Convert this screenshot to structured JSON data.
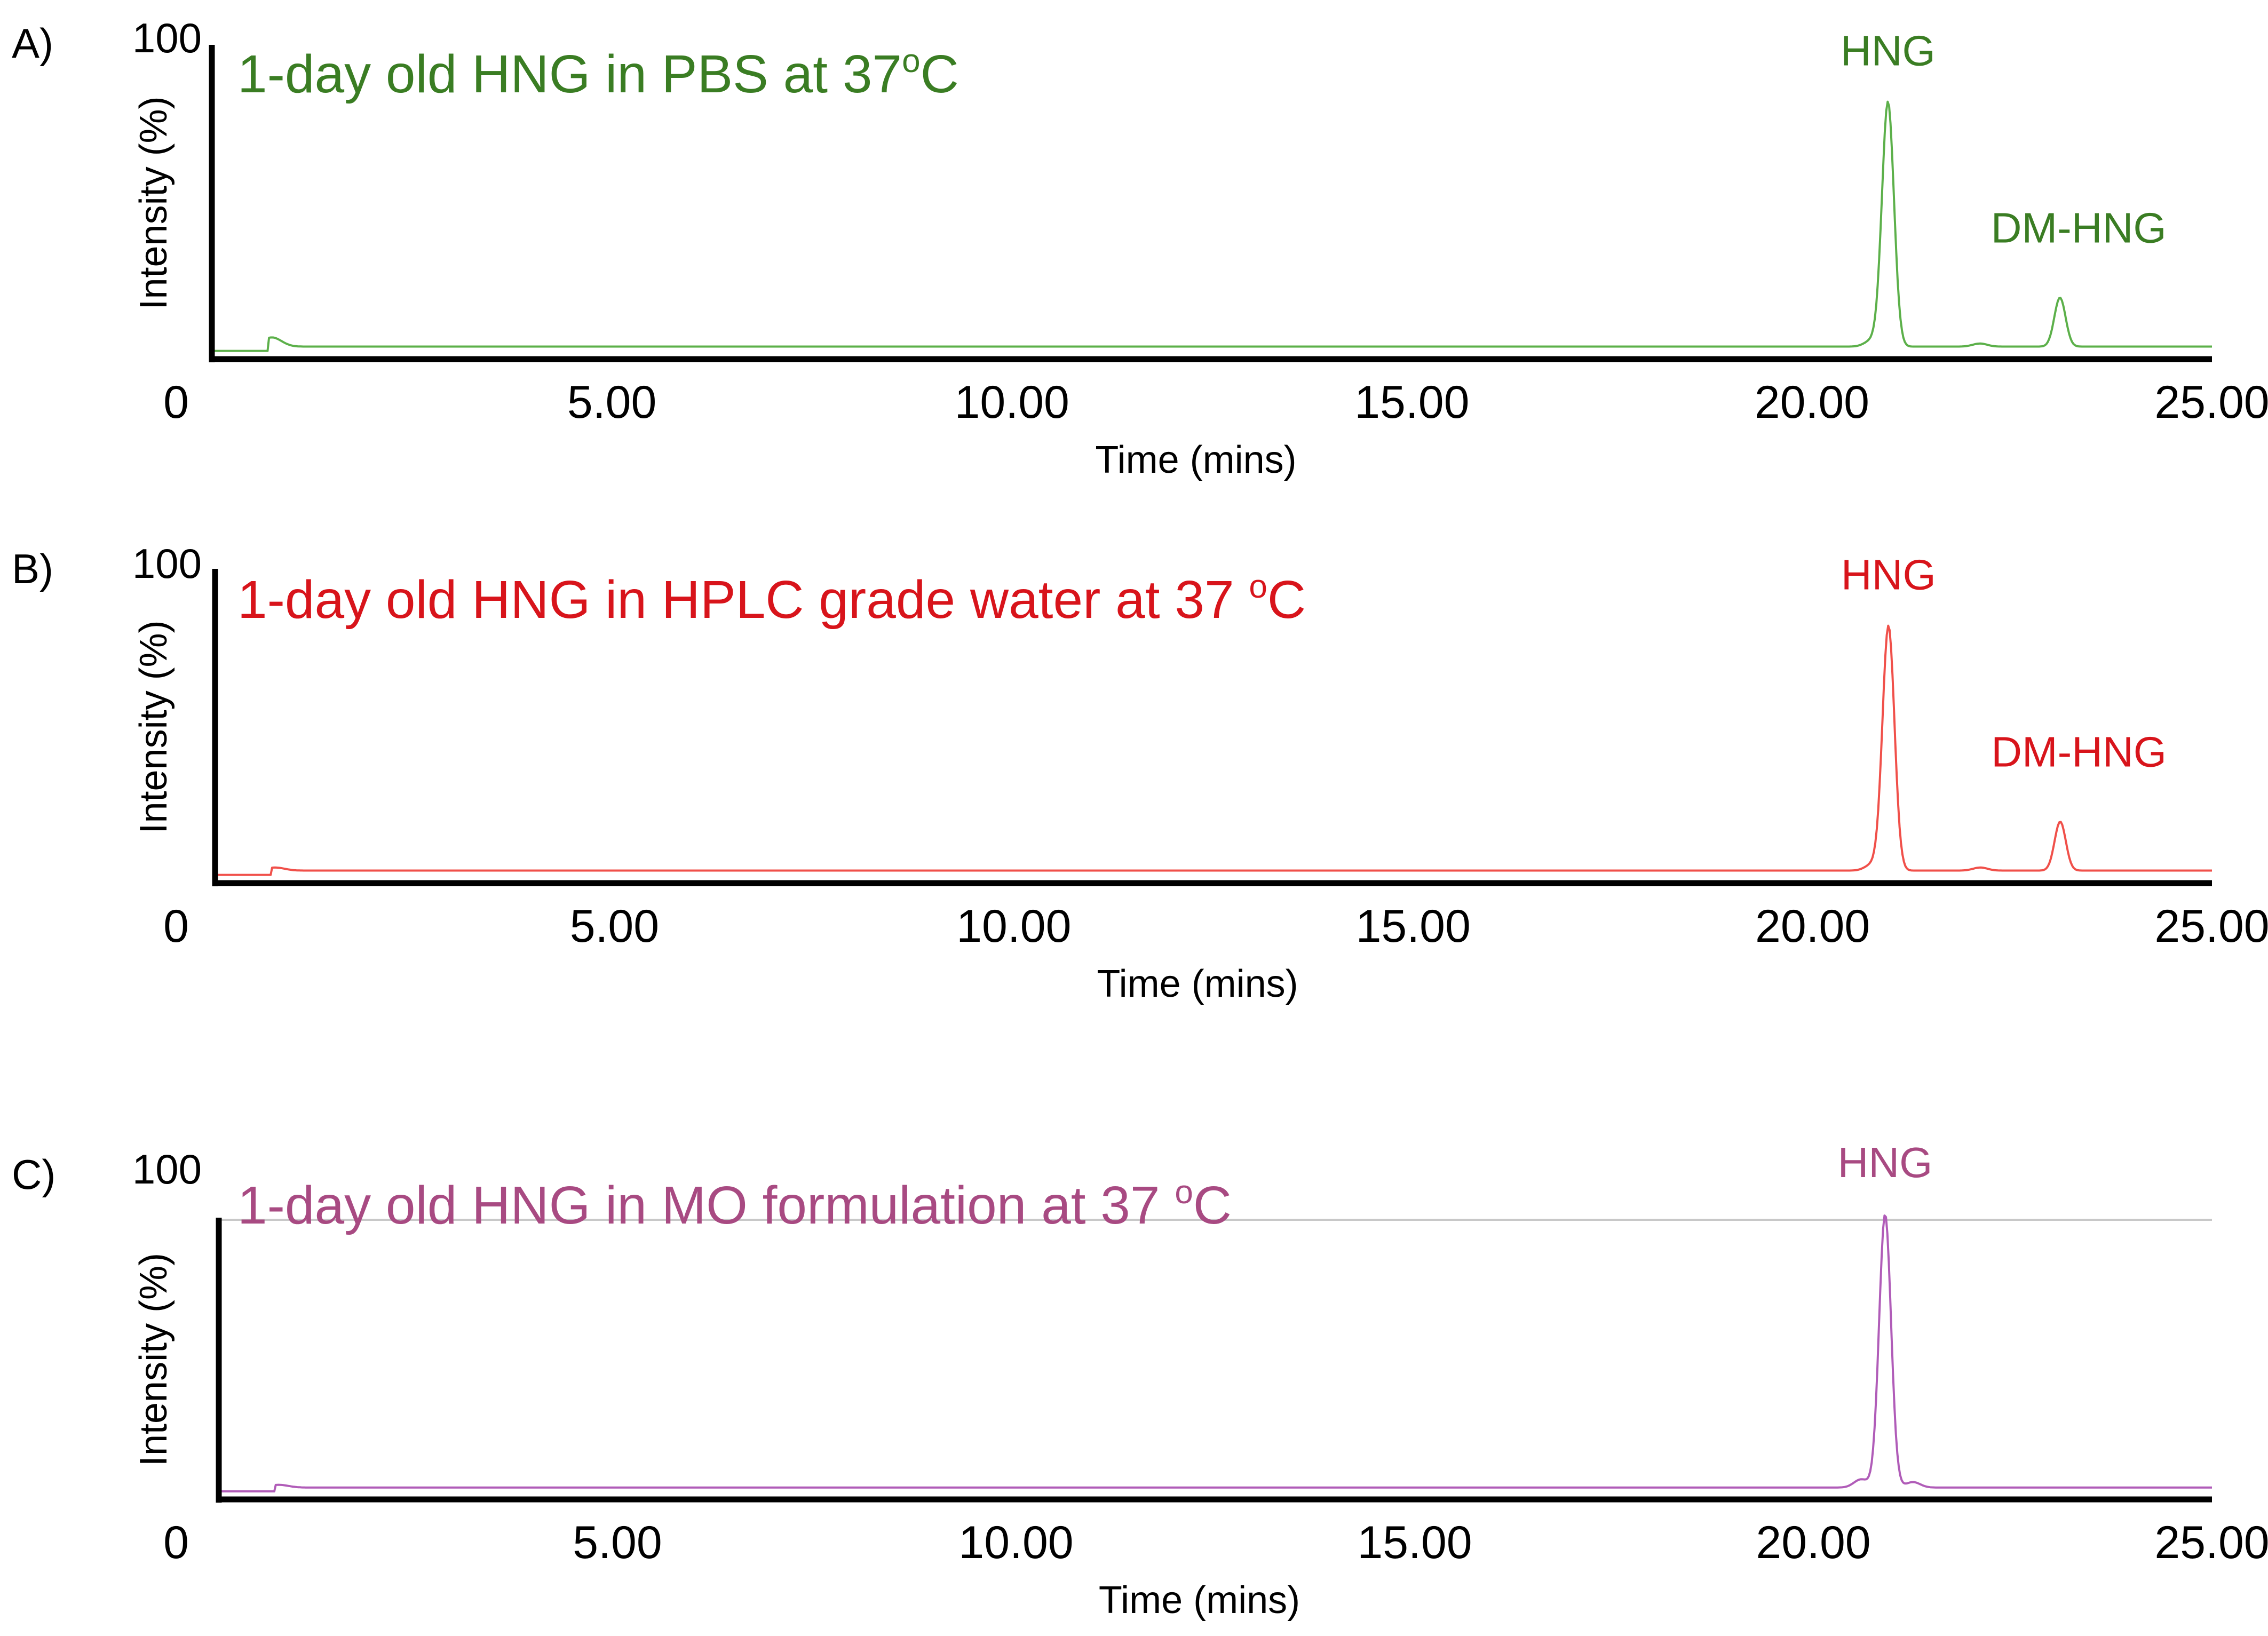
{
  "chart_data": [
    {
      "type": "line",
      "panel_label": "A)",
      "title": "1-day old HNG in PBS at 37",
      "title_superscript": "o",
      "title_suffix": "C",
      "color": "#3a7d23",
      "line_color": "#5cb04a",
      "xlabel": "Time (mins)",
      "ylabel": "Intensity (%)",
      "y_top_label": "100",
      "x_origin_label": "0",
      "xlim": [
        0,
        25
      ],
      "ylim": [
        0,
        100
      ],
      "x_ticks": [
        "5.00",
        "10.00",
        "15.00",
        "20.00",
        "25.00"
      ],
      "baseline": 2,
      "reference_line": false,
      "peaks": [
        {
          "label": "HNG",
          "x": 20.95,
          "height": 80
        },
        {
          "label": "DM-HNG",
          "x": 23.1,
          "height": 16
        }
      ],
      "minor_peaks": [
        {
          "x": 0.75,
          "height": 3
        },
        {
          "x": 20.75,
          "height": 2
        },
        {
          "x": 22.1,
          "height": 1
        }
      ]
    },
    {
      "type": "line",
      "panel_label": "B)",
      "title": "1-day old HNG in HPLC grade water at 37 ",
      "title_superscript": "o",
      "title_suffix": "C",
      "color": "#d8141b",
      "line_color": "#f0504a",
      "xlabel": "Time (mins)",
      "ylabel": "Intensity (%)",
      "y_top_label": "100",
      "x_origin_label": "0",
      "xlim": [
        0,
        25
      ],
      "ylim": [
        0,
        100
      ],
      "x_ticks": [
        "5.00",
        "10.00",
        "15.00",
        "20.00",
        "25.00"
      ],
      "baseline": 2,
      "reference_line": false,
      "peaks": [
        {
          "label": "HNG",
          "x": 20.95,
          "height": 80
        },
        {
          "label": "DM-HNG",
          "x": 23.1,
          "height": 16
        }
      ],
      "minor_peaks": [
        {
          "x": 0.75,
          "height": 1
        },
        {
          "x": 20.75,
          "height": 2
        },
        {
          "x": 22.1,
          "height": 1
        }
      ]
    },
    {
      "type": "line",
      "panel_label": "C)",
      "title": "1-day old HNG in MO formulation at 37 ",
      "title_superscript": "o",
      "title_suffix": "C",
      "color": "#a84a82",
      "line_color": "#b05cb8",
      "xlabel": "Time (mins)",
      "ylabel": "Intensity (%)",
      "y_top_label": "100",
      "x_origin_label": "0",
      "xlim": [
        0,
        25
      ],
      "ylim": [
        0,
        100
      ],
      "x_ticks": [
        "5.00",
        "10.00",
        "15.00",
        "20.00",
        "25.00"
      ],
      "baseline": 2,
      "reference_line": true,
      "reference_line_color": "#c8c8c8",
      "peaks": [
        {
          "label": "HNG",
          "x": 20.9,
          "height": 100
        }
      ],
      "minor_peaks": [
        {
          "x": 0.75,
          "height": 1
        },
        {
          "x": 20.6,
          "height": 3
        },
        {
          "x": 21.25,
          "height": 2
        }
      ]
    }
  ]
}
